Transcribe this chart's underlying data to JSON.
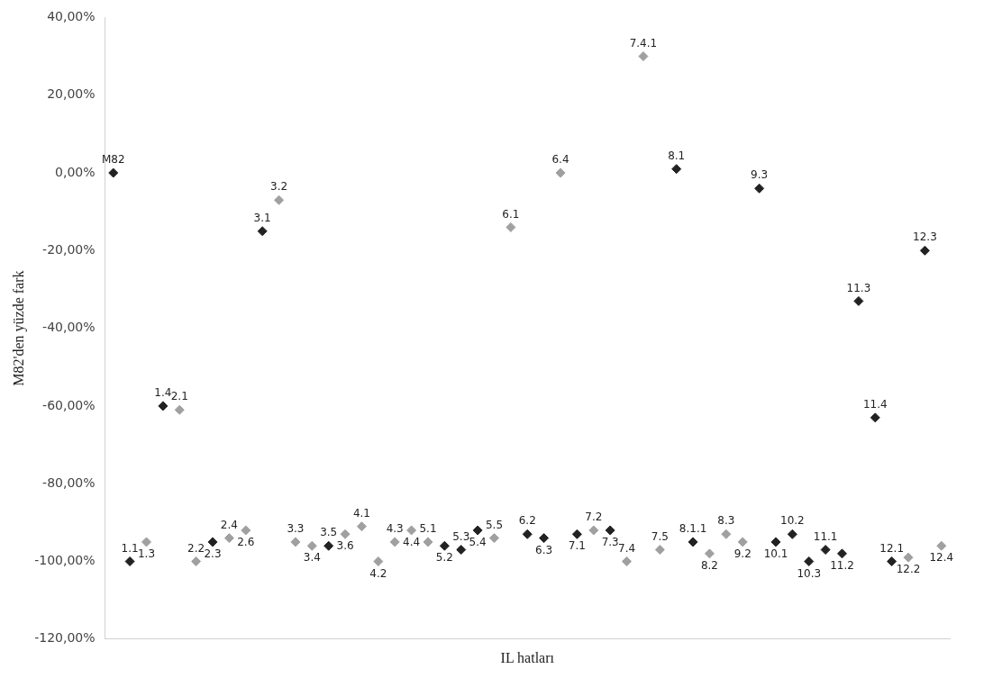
{
  "chart_data": {
    "type": "scatter",
    "xlabel": "IL hatları",
    "ylabel": "M82'den yüzde fark",
    "categories": [
      null,
      null,
      null,
      null,
      null,
      null,
      null,
      null,
      null,
      null,
      null,
      null,
      null,
      null,
      null,
      null,
      null,
      null,
      null,
      null,
      null,
      null,
      null,
      null,
      null,
      null,
      null,
      null,
      null,
      null,
      null,
      null,
      null,
      null,
      null,
      null,
      null,
      null,
      null,
      null,
      null,
      null,
      null,
      null,
      null,
      null,
      null,
      null,
      null,
      null,
      null
    ],
    "values": [
      0,
      -100,
      -95,
      -60,
      -61,
      -100,
      -95,
      -94,
      -92,
      -15,
      -7,
      -95,
      -96,
      -96,
      -93,
      -91,
      -100,
      -95,
      -92,
      -95,
      -96,
      -97,
      -92,
      -94,
      -14,
      -93,
      -94,
      0,
      -93,
      -92,
      -92,
      -100,
      30,
      -97,
      1,
      -95,
      -98,
      -93,
      -95,
      -4,
      -95,
      -93,
      -100,
      -97,
      -98,
      -33,
      -63,
      -100,
      -99,
      -20,
      -96
    ],
    "colors": [
      "#222222",
      "#222222",
      "#a0a0a0",
      "#222222",
      "#a0a0a0",
      "#a0a0a0",
      "#222222",
      "#a0a0a0",
      "#a0a0a0",
      "#222222",
      "#a0a0a0",
      "#a0a0a0",
      "#a0a0a0",
      "#222222",
      "#a0a0a0",
      "#a0a0a0",
      "#a0a0a0",
      "#a0a0a0",
      "#a0a0a0",
      "#a0a0a0",
      "#222222",
      "#222222",
      "#222222",
      "#a0a0a0",
      "#a0a0a0",
      "#222222",
      "#222222",
      "#a0a0a0",
      "#222222",
      "#a0a0a0",
      "#222222",
      "#a0a0a0",
      "#a0a0a0",
      "#a0a0a0",
      "#222222",
      "#222222",
      "#a0a0a0",
      "#a0a0a0",
      "#a0a0a0",
      "#222222",
      "#222222",
      "#222222",
      "#222222",
      "#222222",
      "#222222",
      "#222222",
      "#222222",
      "#222222",
      "#a0a0a0",
      "#222222",
      "#a0a0a0"
    ],
    "annotations": [
      {
        "text": "M82",
        "y": 0
      },
      {
        "text": "1.1",
        "y": -100
      },
      {
        "text": "1.3",
        "y": -95
      },
      {
        "text": "1.4",
        "y": -60
      },
      {
        "text": "2.1",
        "y": -61
      },
      {
        "text": "2.2",
        "y": -100
      },
      {
        "text": "2.3",
        "y": -95
      },
      {
        "text": "2.4",
        "y": -94
      },
      {
        "text": "2.6",
        "y": -92
      },
      {
        "text": "3.1",
        "y": -15
      },
      {
        "text": "3.2",
        "y": -7
      },
      {
        "text": "3.3",
        "y": -95
      },
      {
        "text": "3.4",
        "y": -96
      },
      {
        "text": "3.5",
        "y": -96
      },
      {
        "text": "3.6",
        "y": -93
      },
      {
        "text": "4.1",
        "y": -91
      },
      {
        "text": "4.2",
        "y": -100
      },
      {
        "text": "4.3",
        "y": -95
      },
      {
        "text": "4.4",
        "y": -92
      },
      {
        "text": "5.1",
        "y": -95
      },
      {
        "text": "5.2",
        "y": -96
      },
      {
        "text": "5.3",
        "y": -97
      },
      {
        "text": "5.4",
        "y": -92
      },
      {
        "text": "5.5",
        "y": -94
      },
      {
        "text": "6.1",
        "y": -14
      },
      {
        "text": "6.2",
        "y": -93
      },
      {
        "text": "6.3",
        "y": -94
      },
      {
        "text": "6.4",
        "y": 0
      },
      {
        "text": "7.1",
        "y": -93
      },
      {
        "text": "7.2",
        "y": -92
      },
      {
        "text": "7.3",
        "y": -92
      },
      {
        "text": "7.4",
        "y": -100
      },
      {
        "text": "7.4.1",
        "y": 30
      },
      {
        "text": "7.5",
        "y": -97
      },
      {
        "text": "8.1",
        "y": 1
      },
      {
        "text": "8.1.1",
        "y": -95
      },
      {
        "text": "8.2",
        "y": -98
      },
      {
        "text": "8.3",
        "y": -93
      },
      {
        "text": "9.2",
        "y": -95
      },
      {
        "text": "9.3",
        "y": -4
      },
      {
        "text": "10.1",
        "y": -95
      },
      {
        "text": "10.2",
        "y": -93
      },
      {
        "text": "10.3",
        "y": -100
      },
      {
        "text": "11.1",
        "y": -97
      },
      {
        "text": "11.2",
        "y": -98
      },
      {
        "text": "11.3",
        "y": -33
      },
      {
        "text": "11.4",
        "y": -63
      },
      {
        "text": "12.1",
        "y": -100
      },
      {
        "text": "12.2",
        "y": -99
      },
      {
        "text": "12.3",
        "y": -20
      },
      {
        "text": "12.4",
        "y": -96
      }
    ],
    "ylim": [
      -120,
      40
    ],
    "yticks": [
      {
        "value": 40,
        "label": "40,00%"
      },
      {
        "value": 20,
        "label": "20,00%"
      },
      {
        "value": 0,
        "label": "0,00%"
      },
      {
        "value": -20,
        "label": "-20,00%"
      },
      {
        "value": -40,
        "label": "-40,00%"
      },
      {
        "value": -60,
        "label": "-60,00%"
      },
      {
        "value": -80,
        "label": "-80,00%"
      },
      {
        "value": -100,
        "label": "-100,00%"
      },
      {
        "value": -120,
        "label": "-120,00%"
      }
    ],
    "tick_labels": "y",
    "marker": "diamond",
    "grid": false,
    "legend": false
  }
}
